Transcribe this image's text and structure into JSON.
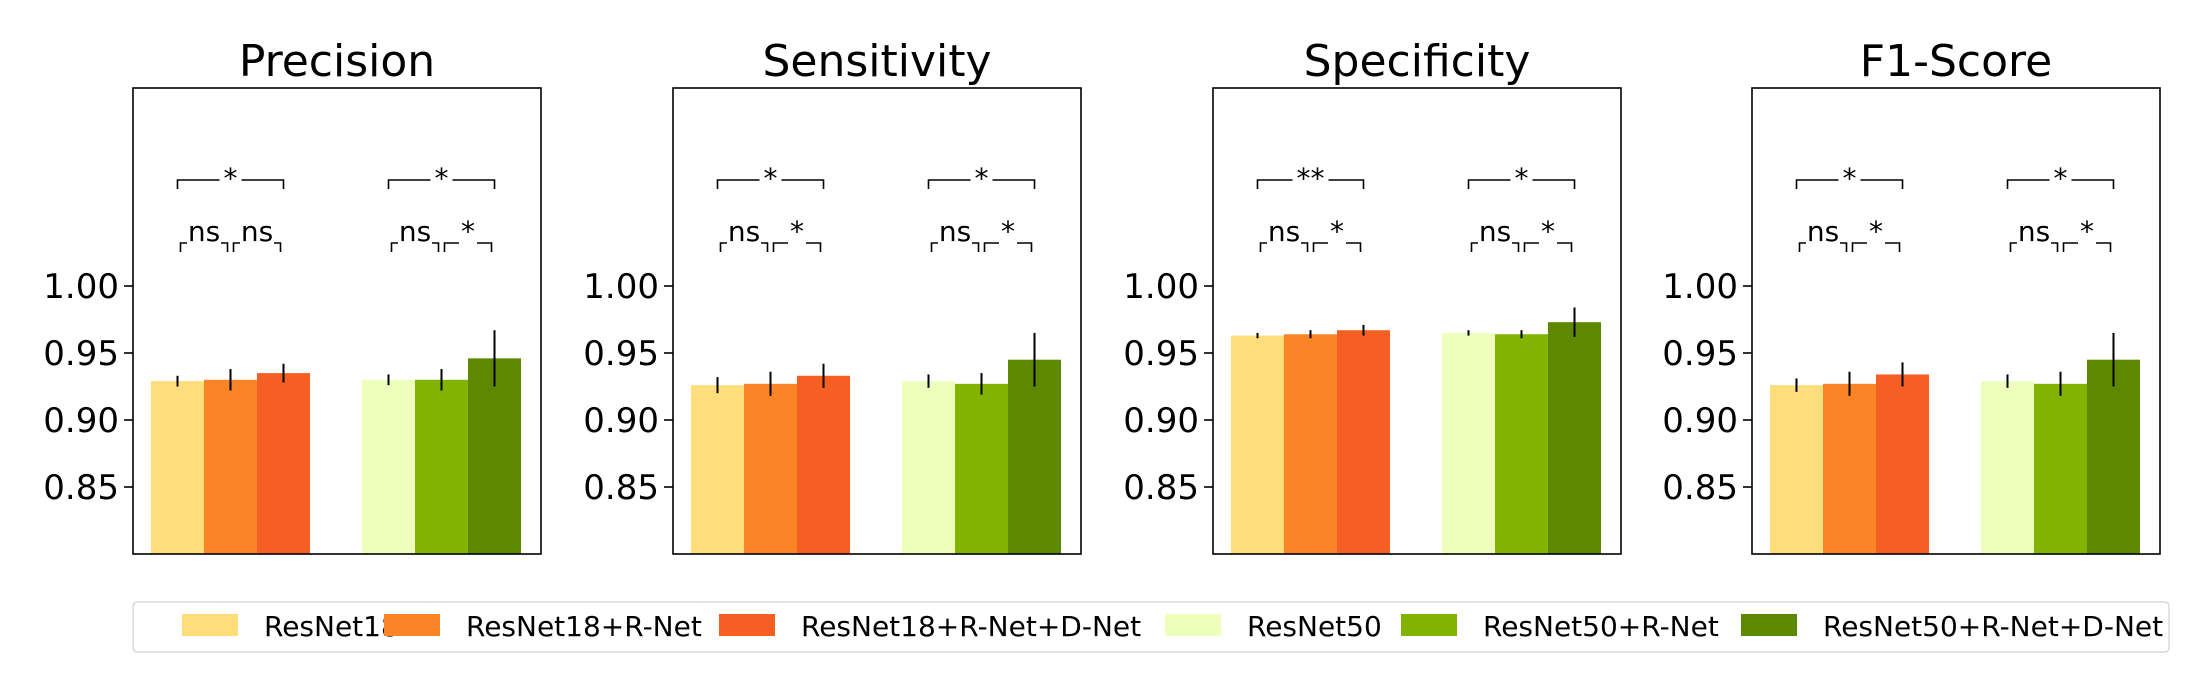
{
  "chart_data": [
    {
      "type": "bar",
      "title": "Precision",
      "group_count": 2,
      "ylim": [
        0.8,
        1.2
      ],
      "yticks": [
        "1.00",
        "0.95",
        "0.90",
        "0.85"
      ],
      "values": [
        0.929,
        0.93,
        0.935,
        0.93,
        0.93,
        0.946
      ],
      "errors": [
        0.004,
        0.008,
        0.007,
        0.004,
        0.008,
        0.021
      ],
      "bracket_top": [
        "*",
        "*"
      ],
      "bracket_pairs": [
        [
          "ns",
          "ns"
        ],
        [
          "ns",
          "*"
        ]
      ]
    },
    {
      "type": "bar",
      "title": "Sensitivity",
      "group_count": 2,
      "ylim": [
        0.8,
        1.2
      ],
      "yticks": [
        "1.00",
        "0.95",
        "0.90",
        "0.85"
      ],
      "values": [
        0.926,
        0.927,
        0.933,
        0.929,
        0.927,
        0.945
      ],
      "errors": [
        0.006,
        0.009,
        0.009,
        0.005,
        0.008,
        0.02
      ],
      "bracket_top": [
        "*",
        "*"
      ],
      "bracket_pairs": [
        [
          "ns",
          "*"
        ],
        [
          "ns",
          "*"
        ]
      ]
    },
    {
      "type": "bar",
      "title": "Specificity",
      "group_count": 2,
      "ylim": [
        0.8,
        1.2
      ],
      "yticks": [
        "1.00",
        "0.95",
        "0.90",
        "0.85"
      ],
      "values": [
        0.963,
        0.964,
        0.967,
        0.965,
        0.964,
        0.973
      ],
      "errors": [
        0.002,
        0.003,
        0.004,
        0.002,
        0.003,
        0.011
      ],
      "bracket_top": [
        "**",
        "*"
      ],
      "bracket_pairs": [
        [
          "ns",
          "*"
        ],
        [
          "ns",
          "*"
        ]
      ]
    },
    {
      "type": "bar",
      "title": "F1-Score",
      "group_count": 2,
      "ylim": [
        0.8,
        1.2
      ],
      "yticks": [
        "1.00",
        "0.95",
        "0.90",
        "0.85"
      ],
      "values": [
        0.926,
        0.927,
        0.934,
        0.929,
        0.927,
        0.945
      ],
      "errors": [
        0.005,
        0.009,
        0.009,
        0.005,
        0.009,
        0.02
      ],
      "bracket_top": [
        "*",
        "*"
      ],
      "bracket_pairs": [
        [
          "ns",
          "*"
        ],
        [
          "ns",
          "*"
        ]
      ]
    }
  ],
  "legend": {
    "placement": "bottom",
    "items": [
      {
        "name": "ResNet18",
        "color": "#FFDD7A"
      },
      {
        "name": "ResNet18+R-Net",
        "color": "#FB8526"
      },
      {
        "name": "ResNet18+R-Net+D-Net",
        "color": "#F65F24"
      },
      {
        "name": "ResNet50",
        "color": "#EEFFBB"
      },
      {
        "name": "ResNet50+R-Net",
        "color": "#82B300"
      },
      {
        "name": "ResNet50+R-Net+D-Net",
        "color": "#5E8800"
      }
    ]
  }
}
